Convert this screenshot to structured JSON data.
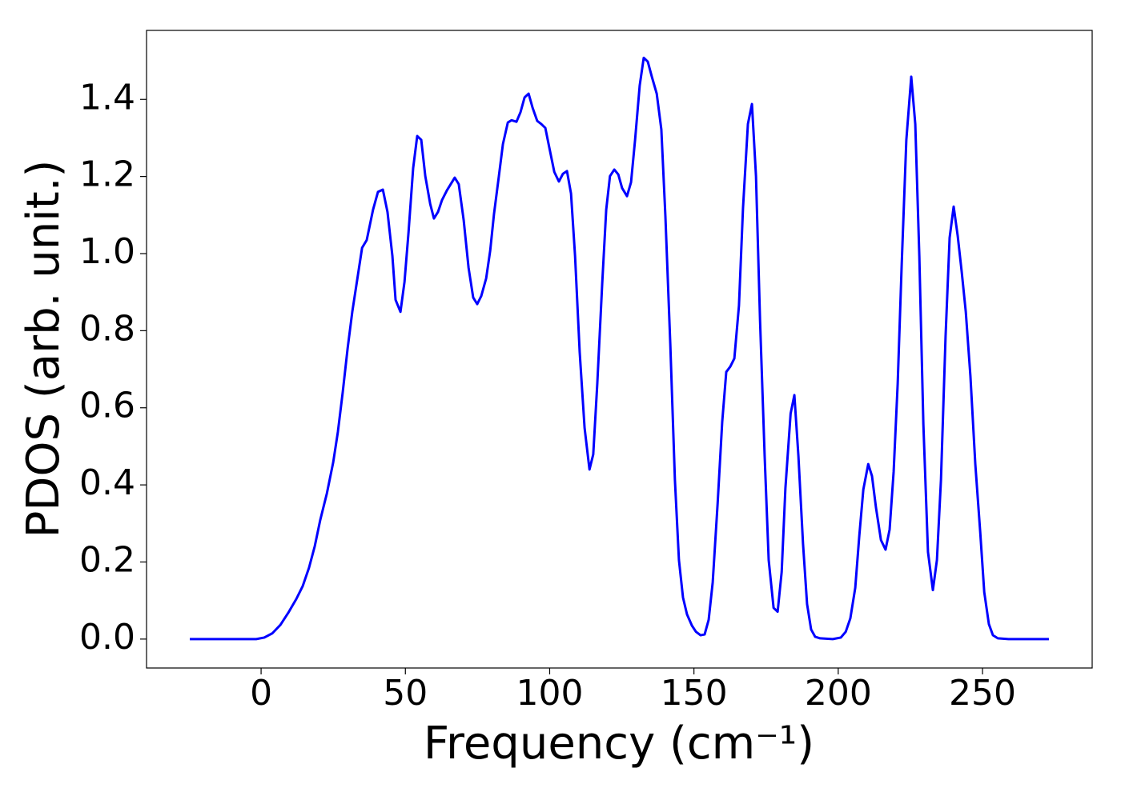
{
  "chart_data": {
    "type": "line",
    "x_label": "Frequency (cm⁻¹)",
    "y_label": "PDOS (arb. unit.)",
    "xlim": [
      -39.7,
      288.0
    ],
    "ylim": [
      -0.075,
      1.579
    ],
    "xticks": [
      0,
      50,
      100,
      150,
      200,
      250
    ],
    "yticks": [
      {
        "value": 0,
        "label": "0.0"
      },
      0.2,
      0.4,
      0.6,
      0.8,
      {
        "value": 1,
        "label": "1.0"
      },
      1.2,
      1.4
    ],
    "x": [
      -24.7,
      -1.7,
      1.1,
      3.9,
      6.7,
      9.4,
      12.2,
      14.4,
      16.6,
      18.6,
      20.5,
      22.8,
      25.0,
      26.6,
      28.3,
      30.0,
      31.6,
      33.3,
      35.0,
      36.6,
      38.8,
      40.5,
      42.2,
      43.8,
      45.5,
      46.6,
      48.3,
      49.7,
      51.1,
      52.7,
      54.1,
      55.5,
      56.9,
      58.6,
      59.9,
      61.3,
      62.7,
      64.4,
      67.1,
      68.5,
      70.2,
      71.9,
      73.5,
      74.9,
      76.3,
      78.0,
      79.4,
      80.7,
      82.4,
      83.8,
      85.5,
      86.8,
      88.5,
      89.9,
      91.3,
      92.7,
      94.1,
      95.7,
      97.1,
      98.5,
      99.9,
      101.6,
      103.2,
      104.6,
      106.0,
      107.4,
      108.8,
      110.4,
      112.1,
      113.8,
      115.1,
      116.5,
      118.2,
      119.6,
      120.9,
      122.4,
      123.8,
      125.1,
      126.8,
      128.2,
      129.6,
      131.2,
      132.6,
      134.0,
      135.4,
      137.1,
      138.7,
      140.1,
      141.8,
      143.4,
      144.8,
      146.2,
      147.6,
      149.3,
      150.7,
      152.3,
      153.7,
      155.1,
      156.5,
      158.2,
      159.8,
      161.2,
      162.6,
      164.0,
      165.6,
      167.0,
      168.7,
      170.1,
      171.5,
      172.9,
      174.5,
      175.9,
      177.6,
      179.0,
      180.4,
      181.7,
      183.5,
      184.8,
      186.2,
      187.8,
      189.2,
      190.6,
      192.0,
      193.7,
      198.1,
      200.9,
      202.6,
      204.2,
      205.9,
      207.3,
      208.7,
      210.4,
      211.7,
      213.1,
      214.8,
      216.4,
      217.8,
      219.2,
      220.6,
      222.0,
      223.6,
      225.3,
      226.7,
      228.1,
      229.5,
      231.1,
      232.8,
      234.2,
      235.6,
      237.2,
      238.6,
      240.0,
      241.4,
      242.8,
      244.2,
      245.8,
      247.5,
      249.2,
      250.6,
      252.2,
      253.6,
      255.3,
      259.0,
      273.0
    ],
    "series": [
      {
        "color": "#0000ff",
        "values": [
          0,
          0,
          0.004,
          0.015,
          0.037,
          0.068,
          0.104,
          0.137,
          0.185,
          0.241,
          0.309,
          0.378,
          0.459,
          0.537,
          0.641,
          0.755,
          0.849,
          0.932,
          1.015,
          1.035,
          1.114,
          1.16,
          1.166,
          1.108,
          0.994,
          0.88,
          0.849,
          0.927,
          1.056,
          1.222,
          1.305,
          1.295,
          1.201,
          1.129,
          1.091,
          1.108,
          1.139,
          1.164,
          1.197,
          1.18,
          1.087,
          0.963,
          0.886,
          0.869,
          0.89,
          0.936,
          1.008,
          1.102,
          1.201,
          1.284,
          1.34,
          1.346,
          1.342,
          1.367,
          1.405,
          1.415,
          1.378,
          1.344,
          1.336,
          1.326,
          1.274,
          1.212,
          1.187,
          1.207,
          1.214,
          1.156,
          0.994,
          0.745,
          0.548,
          0.44,
          0.479,
          0.662,
          0.921,
          1.114,
          1.201,
          1.218,
          1.205,
          1.17,
          1.149,
          1.185,
          1.295,
          1.436,
          1.508,
          1.498,
          1.459,
          1.415,
          1.322,
          1.098,
          0.766,
          0.413,
          0.205,
          0.108,
          0.064,
          0.035,
          0.019,
          0.01,
          0.012,
          0.05,
          0.147,
          0.351,
          0.564,
          0.693,
          0.707,
          0.728,
          0.865,
          1.118,
          1.336,
          1.388,
          1.201,
          0.828,
          0.475,
          0.205,
          0.081,
          0.071,
          0.174,
          0.392,
          0.585,
          0.633,
          0.475,
          0.247,
          0.091,
          0.025,
          0.006,
          0.002,
          0,
          0.004,
          0.019,
          0.054,
          0.133,
          0.268,
          0.388,
          0.454,
          0.423,
          0.34,
          0.257,
          0.232,
          0.284,
          0.434,
          0.662,
          0.973,
          1.295,
          1.459,
          1.336,
          0.994,
          0.558,
          0.226,
          0.127,
          0.205,
          0.413,
          0.786,
          1.041,
          1.122,
          1.046,
          0.952,
          0.849,
          0.683,
          0.454,
          0.278,
          0.122,
          0.039,
          0.01,
          0.002,
          0,
          0
        ]
      }
    ]
  }
}
